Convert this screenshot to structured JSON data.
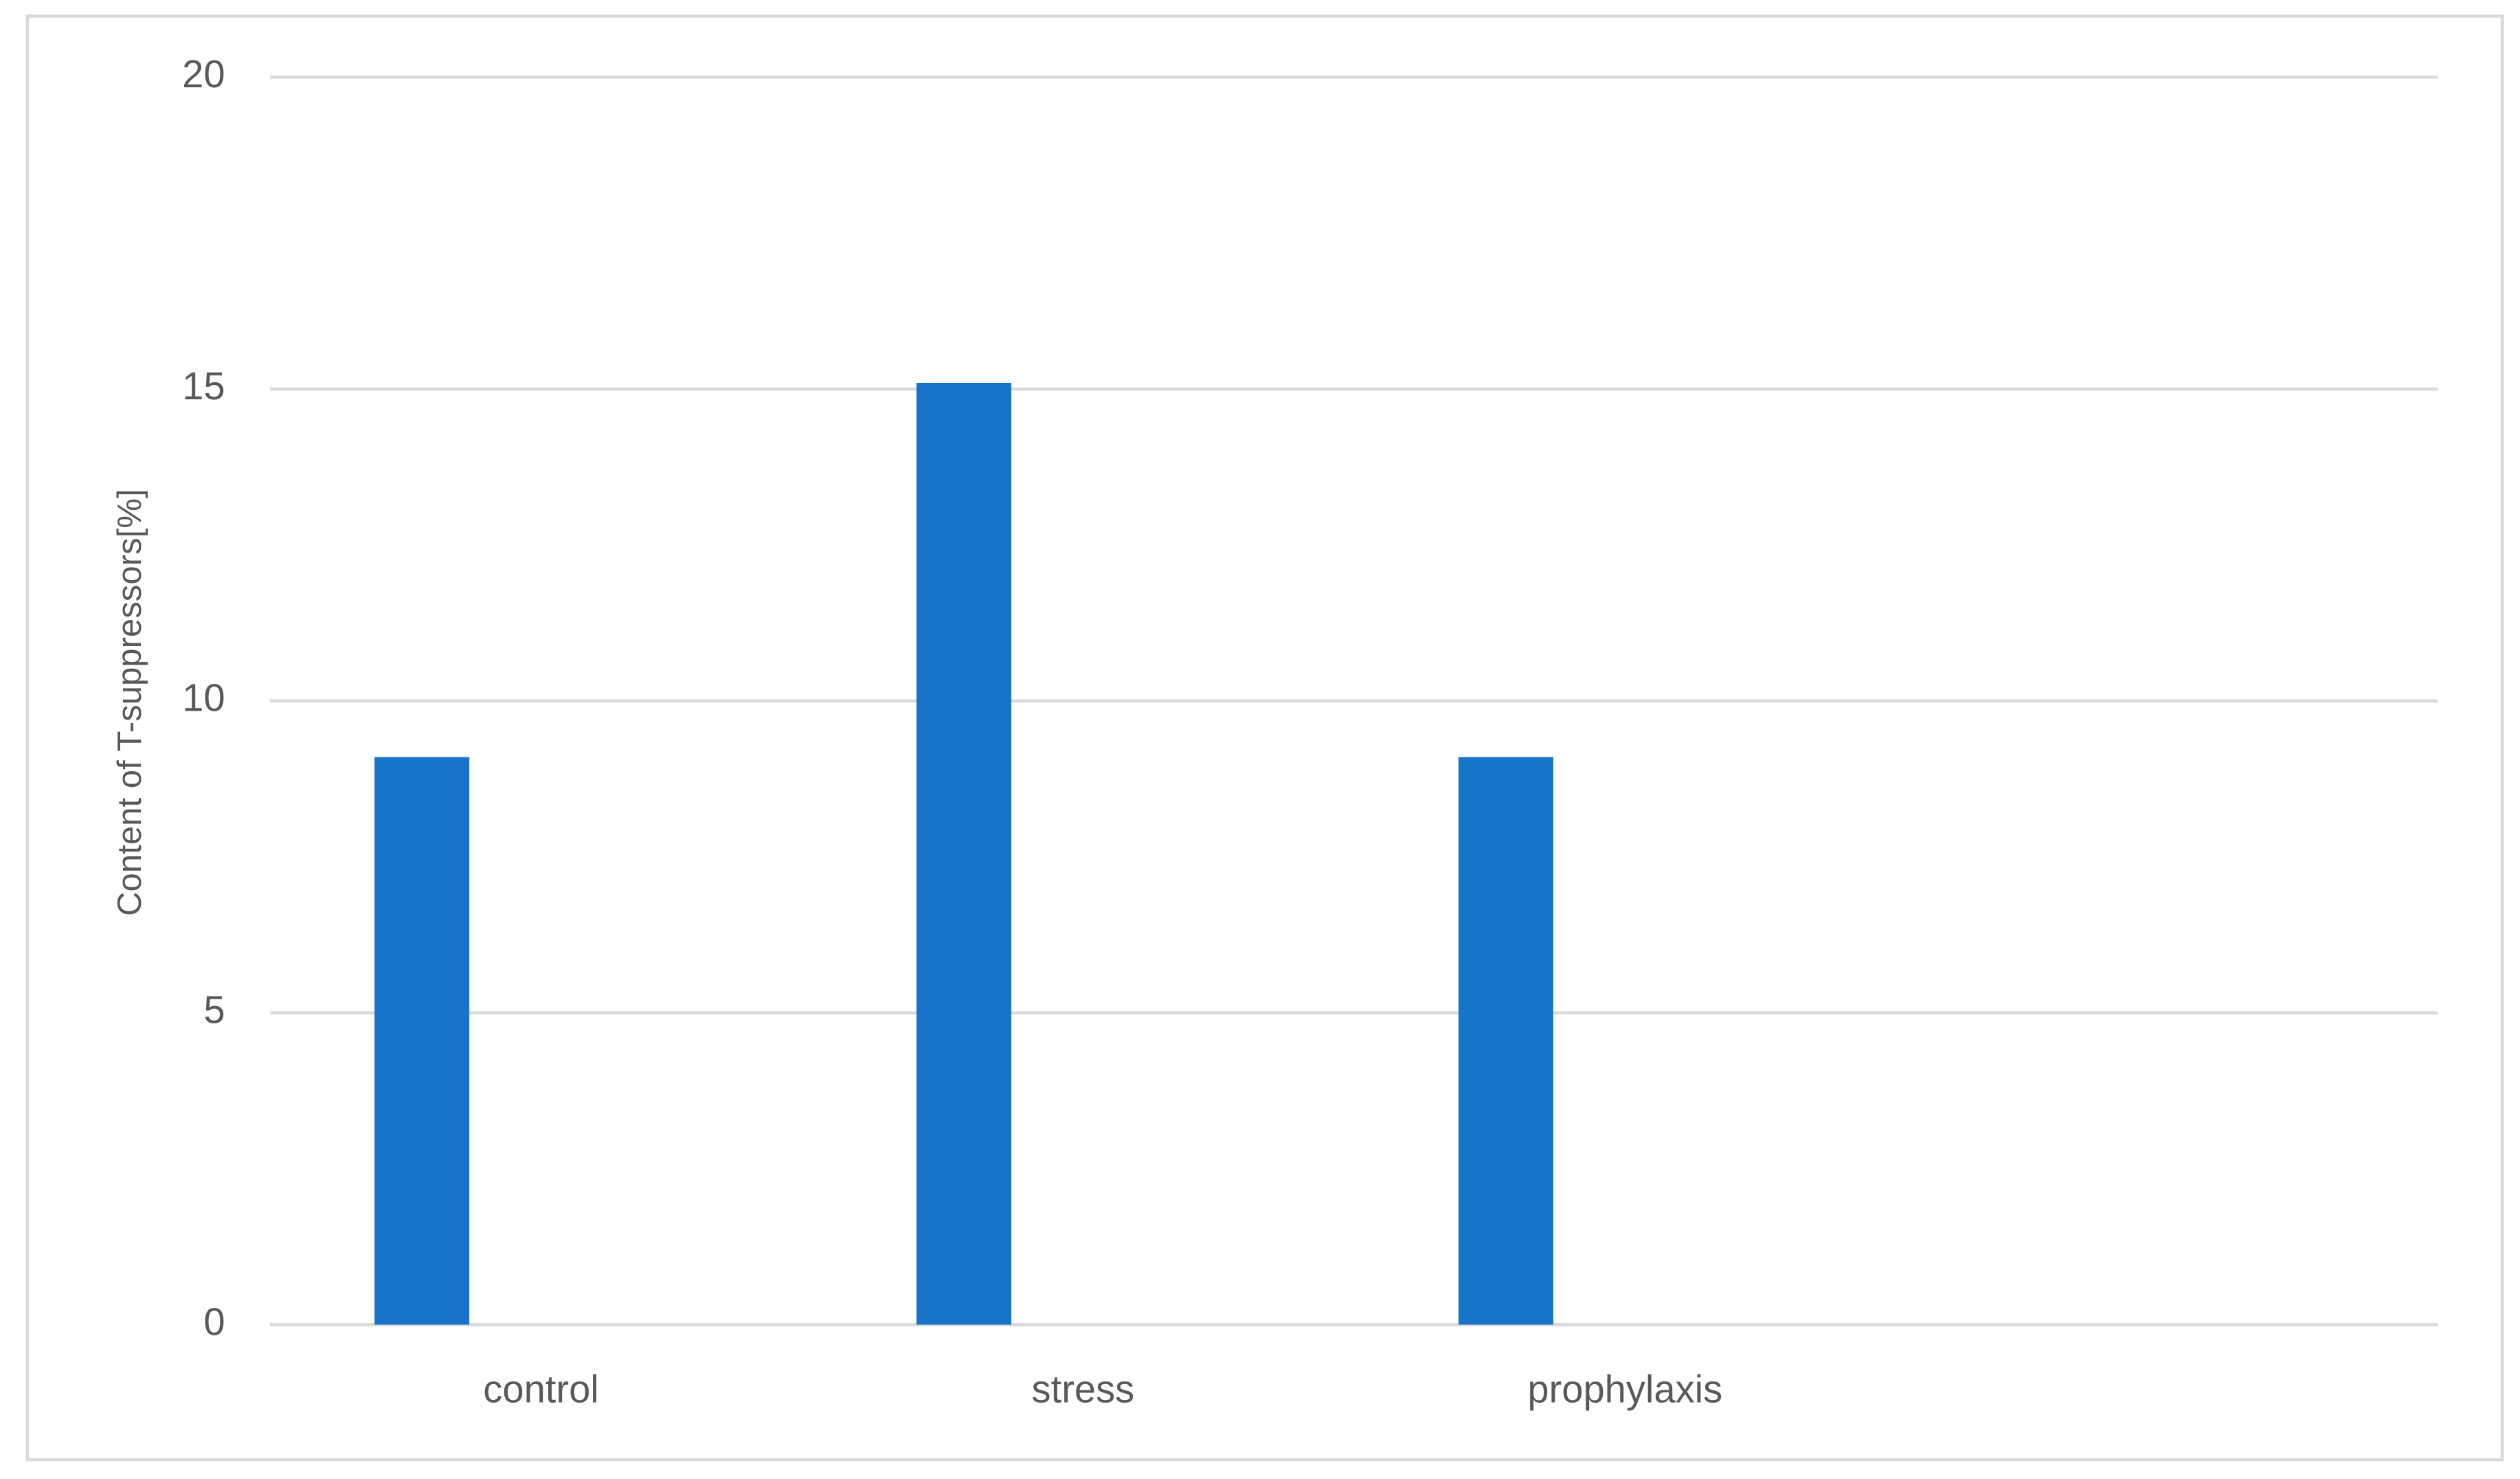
{
  "chart_data": {
    "type": "bar",
    "y_label": "Content of T-suppressors[%]",
    "categories": [
      "control",
      "stress",
      "prophylaxis",
      null
    ],
    "values": [
      9.1,
      15.1,
      9.1,
      null
    ],
    "color": "#1874c8",
    "ylim": [
      0,
      20
    ],
    "yticks": [
      0,
      5,
      10,
      15,
      20
    ],
    "grid": true
  }
}
